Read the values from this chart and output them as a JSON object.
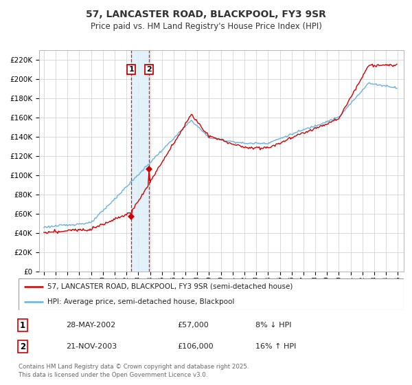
{
  "title": "57, LANCASTER ROAD, BLACKPOOL, FY3 9SR",
  "subtitle": "Price paid vs. HM Land Registry's House Price Index (HPI)",
  "ylim": [
    0,
    230000
  ],
  "yticks": [
    0,
    20000,
    40000,
    60000,
    80000,
    100000,
    120000,
    140000,
    160000,
    180000,
    200000,
    220000
  ],
  "hpi_color": "#6ab0dc",
  "price_color": "#cc0000",
  "sale1_year": 2002.42,
  "sale1_price": 57000,
  "sale2_year": 2003.9,
  "sale2_price": 106000,
  "legend_line1": "57, LANCASTER ROAD, BLACKPOOL, FY3 9SR (semi-detached house)",
  "legend_line2": "HPI: Average price, semi-detached house, Blackpool",
  "table_row1": [
    "1",
    "28-MAY-2002",
    "£57,000",
    "8% ↓ HPI"
  ],
  "table_row2": [
    "2",
    "21-NOV-2003",
    "£106,000",
    "16% ↑ HPI"
  ],
  "footnote": "Contains HM Land Registry data © Crown copyright and database right 2025.\nThis data is licensed under the Open Government Licence v3.0.",
  "background_color": "#ffffff",
  "grid_color": "#cccccc",
  "shade_color": "#ddeef8"
}
